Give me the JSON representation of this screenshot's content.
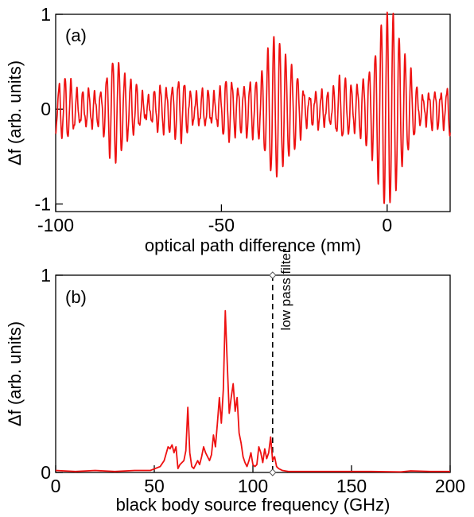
{
  "chart_data": [
    {
      "type": "line",
      "panel_label": "(a)",
      "xlabel": "optical path difference (mm)",
      "ylabel": "Δf (arb. units)",
      "xlim": [
        -100,
        19
      ],
      "ylim": [
        -1.08,
        1
      ],
      "x_ticks": [
        -100,
        -50,
        0
      ],
      "x_tick_labels": [
        "-100",
        "-50",
        "0"
      ],
      "y_ticks": [
        -1,
        0,
        1
      ],
      "y_tick_labels": [
        "-1",
        "0",
        "1"
      ],
      "grid": false,
      "series": [
        {
          "color": "#ee1111",
          "style": "interferogram",
          "x_range": [
            -100,
            19
          ],
          "fringe_period_mm": 1.8,
          "baseline_amplitude": 0.27,
          "packets": [
            {
              "center_mm": 0,
              "peak_amplitude": 1.0,
              "width_mm": 3.5
            },
            {
              "center_mm": -34,
              "peak_amplitude": 0.65,
              "width_mm": 3.5
            },
            {
              "center_mm": -82,
              "peak_amplitude": 0.4,
              "width_mm": 2.5
            }
          ]
        }
      ]
    },
    {
      "type": "line",
      "panel_label": "(b)",
      "xlabel": "black body source frequency (GHz)",
      "ylabel": "Δf (arb. units)",
      "xlim": [
        0,
        200
      ],
      "ylim": [
        0,
        1
      ],
      "x_ticks": [
        0,
        50,
        100,
        150,
        200
      ],
      "x_tick_labels": [
        "0",
        "50",
        "100",
        "150",
        "200"
      ],
      "y_ticks": [
        0,
        1
      ],
      "y_tick_labels": [
        "0",
        "1"
      ],
      "grid": false,
      "series": [
        {
          "color": "#ee1111",
          "x": [
            0,
            10,
            20,
            30,
            40,
            48,
            53,
            55,
            57,
            58,
            59,
            60,
            61,
            62,
            63,
            64,
            65,
            66,
            67,
            68,
            69,
            70,
            71,
            72,
            73,
            74,
            75,
            76,
            77,
            78,
            79,
            80,
            81,
            82,
            83,
            84,
            85,
            86,
            87,
            88,
            89,
            90,
            91,
            92,
            93,
            94,
            95,
            96,
            97,
            98,
            99,
            100,
            101,
            102,
            103,
            104,
            105,
            106,
            107,
            108,
            109,
            110,
            111,
            112,
            113,
            115,
            118,
            125,
            140,
            160,
            175,
            180,
            190,
            200
          ],
          "y": [
            0.01,
            0.005,
            0.01,
            0.005,
            0.01,
            0.01,
            0.03,
            0.06,
            0.13,
            0.12,
            0.14,
            0.1,
            0.13,
            0.02,
            0.04,
            0.05,
            0.06,
            0.11,
            0.33,
            0.1,
            0.03,
            0.02,
            0.04,
            0.06,
            0.04,
            0.08,
            0.13,
            0.1,
            0.08,
            0.06,
            0.09,
            0.19,
            0.13,
            0.25,
            0.38,
            0.25,
            0.42,
            0.82,
            0.55,
            0.3,
            0.38,
            0.45,
            0.31,
            0.38,
            0.2,
            0.15,
            0.08,
            0.05,
            0.03,
            0.06,
            0.1,
            0.04,
            0.03,
            0.04,
            0.13,
            0.1,
            0.05,
            0.12,
            0.07,
            0.1,
            0.18,
            0.06,
            0.08,
            0.03,
            0.02,
            0.01,
            0.005,
            0.005,
            0.005,
            0.005,
            0.003,
            0.008,
            0.005,
            0.005
          ]
        }
      ],
      "annotations": [
        {
          "type": "vertical-dashed-line",
          "x": 110,
          "label": "low pass filter"
        }
      ]
    }
  ]
}
